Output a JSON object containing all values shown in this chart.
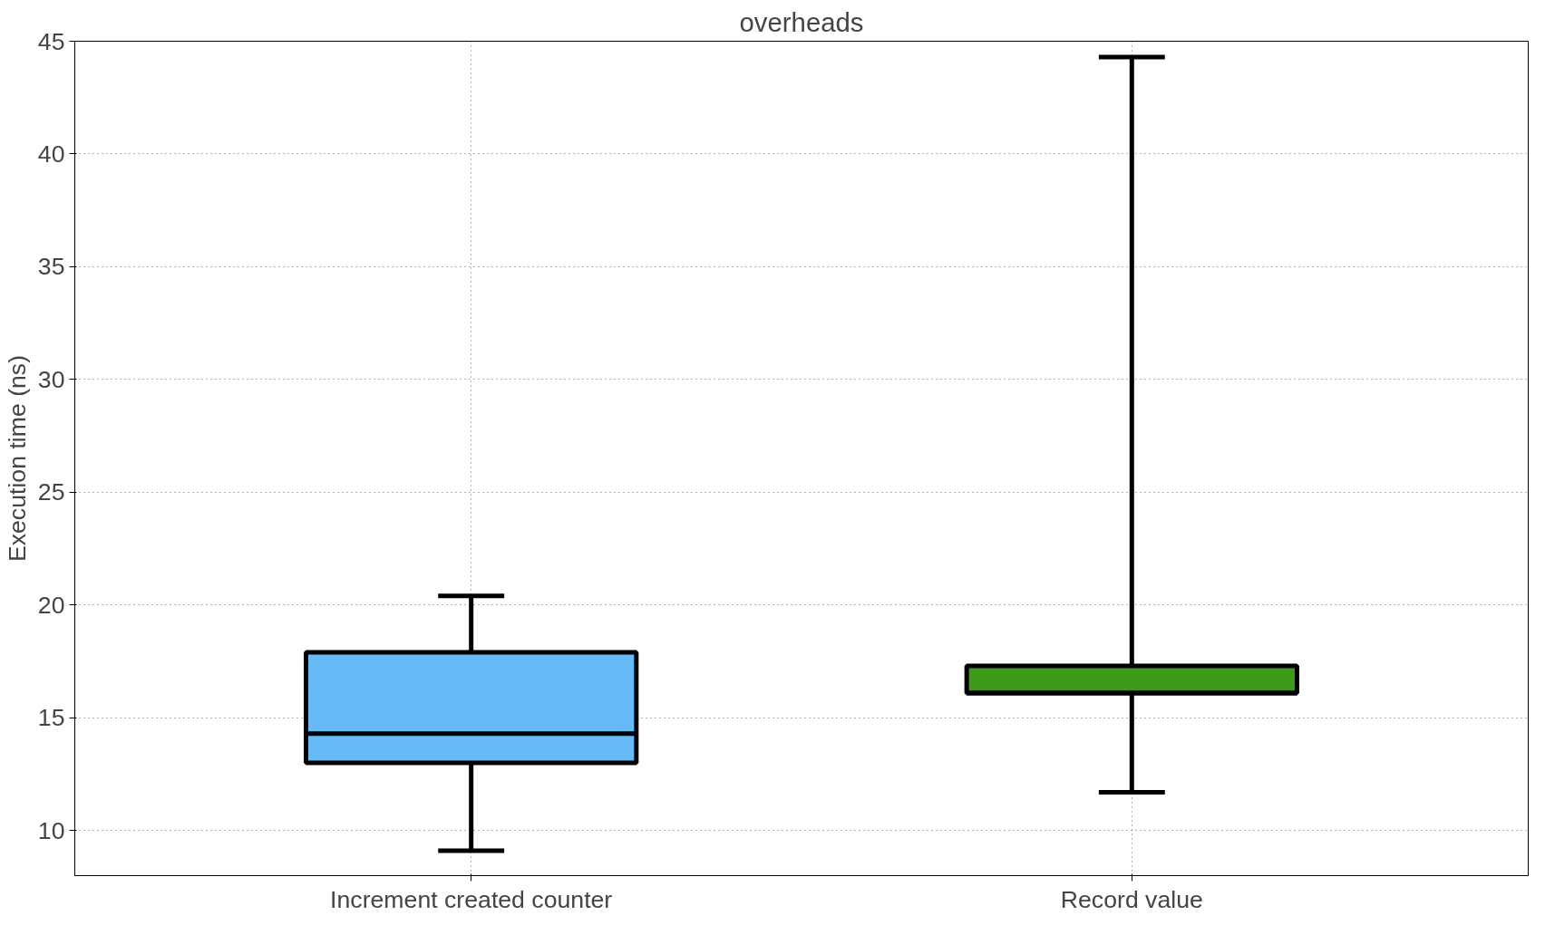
{
  "chart_data": {
    "type": "box",
    "title": "overheads",
    "ylabel": "Execution time (ns)",
    "categories": [
      "Increment created counter",
      "Record value"
    ],
    "colors": [
      "#66bbf7",
      "#3f9a1c"
    ],
    "boxes": [
      {
        "low": 9.1,
        "q1": 13.0,
        "median": 14.3,
        "q3": 17.9,
        "high": 20.4
      },
      {
        "low": 11.7,
        "q1": 16.1,
        "median": 16.1,
        "q3": 17.3,
        "high": 44.3
      }
    ],
    "ylim": [
      8,
      45
    ],
    "yticks": [
      10,
      15,
      20,
      25,
      30,
      35,
      40,
      45
    ],
    "grid": true
  }
}
